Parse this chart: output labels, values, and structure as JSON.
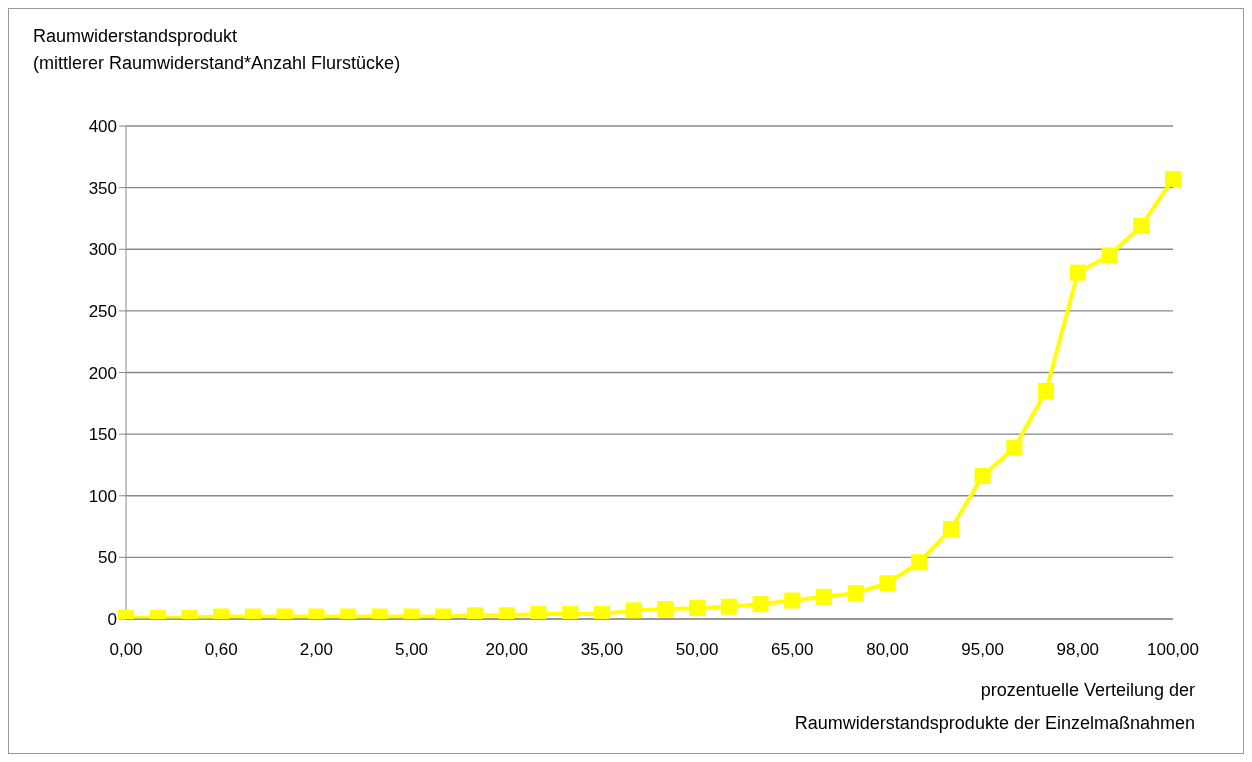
{
  "chart_data": {
    "type": "line",
    "ylabel": "Raumwiderstandsprodukt\n(mittlerer Raumwiderstand*Anzahl Flurstücke)",
    "xlabel": "prozentuelle Verteilung der\nRaumwiderstandsprodukte der Einzelmaßnahmen",
    "categories": [
      "0,00",
      null,
      null,
      "0,60",
      null,
      null,
      "2,00",
      null,
      null,
      "5,00",
      null,
      null,
      "20,00",
      null,
      null,
      "35,00",
      null,
      null,
      "50,00",
      null,
      null,
      "65,00",
      null,
      null,
      "80,00",
      null,
      null,
      "95,00",
      null,
      null,
      "98,00",
      null,
      null,
      "100,00"
    ],
    "series": [
      {
        "color": "#ffff00",
        "values": [
          1,
          1,
          1,
          2,
          2,
          2,
          2,
          2,
          2,
          2,
          2,
          3,
          3,
          4,
          4,
          4,
          7,
          8,
          9,
          10,
          12,
          15,
          18,
          21,
          29,
          46,
          73,
          116,
          139,
          185,
          281,
          295,
          319,
          357
        ]
      }
    ],
    "ylim": [
      0,
      400
    ],
    "yticks": [
      0,
      50,
      100,
      150,
      200,
      250,
      300,
      350,
      400
    ],
    "grid": "y",
    "marker": "square",
    "line_style": "solid"
  }
}
